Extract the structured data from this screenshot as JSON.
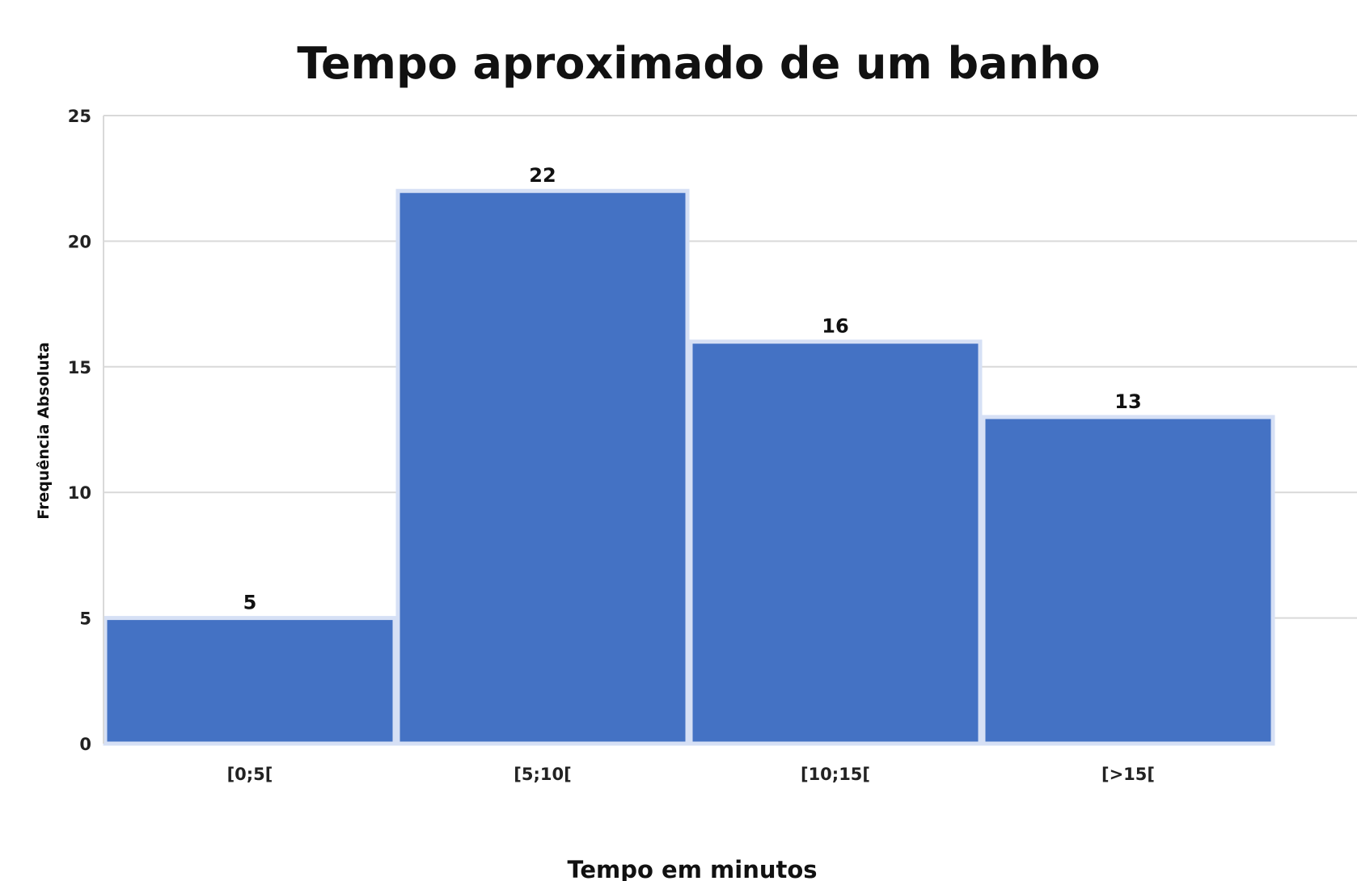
{
  "chart_data": {
    "type": "bar",
    "title": "Tempo aproximado de um banho",
    "xlabel": "Tempo em minutos",
    "ylabel": "Frequência Absoluta",
    "categories": [
      "[0;5[",
      "[5;10[",
      "[10;15[",
      "[>15["
    ],
    "values": [
      5,
      22,
      16,
      13
    ],
    "ylim": [
      0,
      25
    ],
    "yticks": [
      0,
      5,
      10,
      15,
      20,
      25
    ],
    "grid": true,
    "legend": "none",
    "bar_color": "#4472c4",
    "bar_edge_color": "#d6e0f5",
    "grid_color": "#d9d9d9"
  }
}
